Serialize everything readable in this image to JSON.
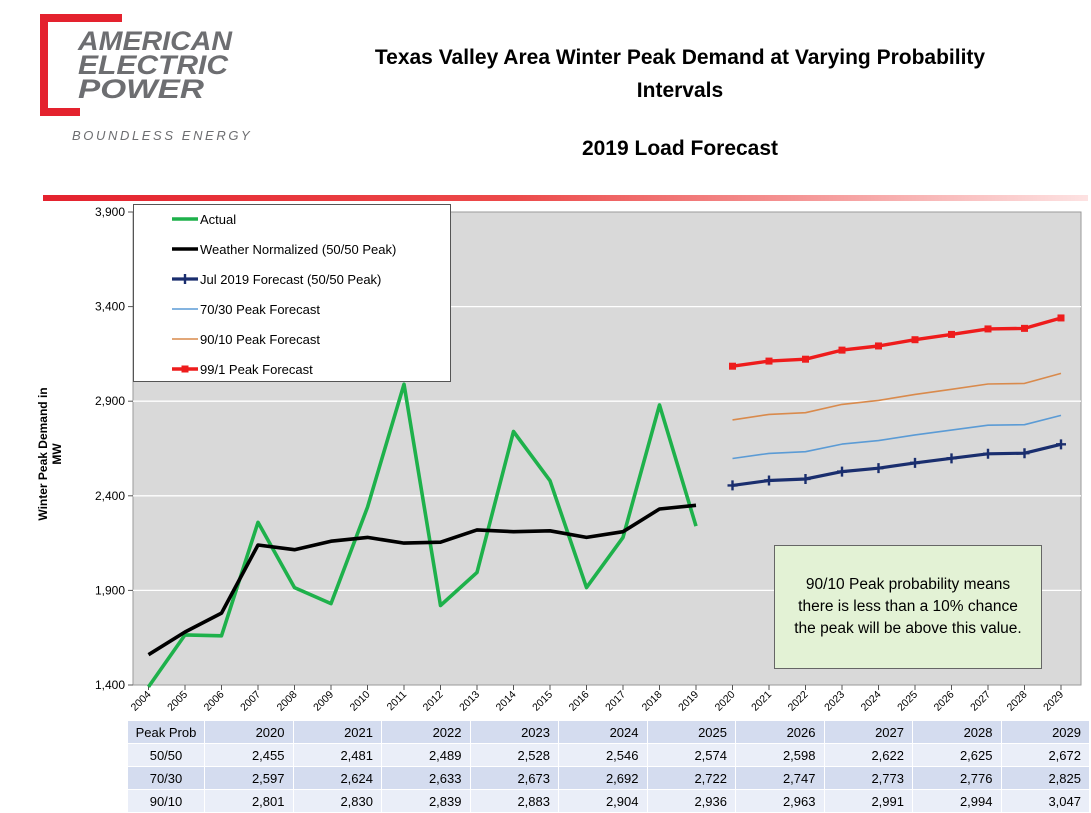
{
  "logo": {
    "line1": "AMERICAN",
    "line2": "ELECTRIC",
    "line3": "POWER",
    "tagline": "BOUNDLESS ENERGY",
    "brand_red": "#e4222e"
  },
  "title": {
    "line1": "Texas Valley Area Winter Peak Demand at Varying Probability",
    "line2": "Intervals",
    "subtitle": "2019 Load Forecast"
  },
  "note": "90/10 Peak probability means there is less than a 10% chance the peak will be above this value.",
  "chart_data": {
    "type": "line",
    "ylabel": "Winter Peak Demand in MW",
    "ylim": [
      1400,
      3900
    ],
    "yticks": [
      1400,
      1900,
      2400,
      2900,
      3400,
      3900
    ],
    "ytick_labels": [
      "1,400",
      "1,900",
      "2,400",
      "2,900",
      "3,400",
      "3,900"
    ],
    "x": [
      2004,
      2005,
      2006,
      2007,
      2008,
      2009,
      2010,
      2011,
      2012,
      2013,
      2014,
      2015,
      2016,
      2017,
      2018,
      2019,
      2020,
      2021,
      2022,
      2023,
      2024,
      2025,
      2026,
      2027,
      2028,
      2029
    ],
    "grid": "horizontal",
    "legend_position": "top-left",
    "series": [
      {
        "name": "Actual",
        "color": "#1eb14b",
        "style": "line-thick",
        "x": [
          2004,
          2005,
          2006,
          2007,
          2008,
          2009,
          2010,
          2011,
          2012,
          2013,
          2014,
          2015,
          2016,
          2017,
          2018,
          2019
        ],
        "values": [
          1390,
          1665,
          1660,
          2260,
          1915,
          1830,
          2340,
          2990,
          1820,
          1995,
          2740,
          2480,
          1915,
          2180,
          2880,
          2240
        ]
      },
      {
        "name": "Weather Normalized (50/50 Peak)",
        "color": "#000000",
        "style": "line-thick",
        "x": [
          2004,
          2005,
          2006,
          2007,
          2008,
          2009,
          2010,
          2011,
          2012,
          2013,
          2014,
          2015,
          2016,
          2017,
          2018,
          2019
        ],
        "values": [
          1560,
          1680,
          1780,
          2140,
          2115,
          2160,
          2180,
          2150,
          2155,
          2220,
          2210,
          2215,
          2180,
          2210,
          2330,
          2350
        ]
      },
      {
        "name": "Jul 2019 Forecast (50/50 Peak)",
        "color": "#1a2e6e",
        "style": "line-cross",
        "x": [
          2020,
          2021,
          2022,
          2023,
          2024,
          2025,
          2026,
          2027,
          2028,
          2029
        ],
        "values": [
          2455,
          2481,
          2489,
          2528,
          2546,
          2574,
          2598,
          2622,
          2625,
          2672
        ]
      },
      {
        "name": "70/30 Peak Forecast",
        "color": "#5b9bd5",
        "style": "line-thin",
        "x": [
          2020,
          2021,
          2022,
          2023,
          2024,
          2025,
          2026,
          2027,
          2028,
          2029
        ],
        "values": [
          2597,
          2624,
          2633,
          2673,
          2692,
          2722,
          2747,
          2773,
          2776,
          2825
        ]
      },
      {
        "name": "90/10 Peak Forecast",
        "color": "#d98a4c",
        "style": "line-thin",
        "x": [
          2020,
          2021,
          2022,
          2023,
          2024,
          2025,
          2026,
          2027,
          2028,
          2029
        ],
        "values": [
          2801,
          2830,
          2839,
          2883,
          2904,
          2936,
          2963,
          2991,
          2994,
          3047
        ]
      },
      {
        "name": "99/1 Peak Forecast",
        "color": "#ee1c1c",
        "style": "line-square",
        "x": [
          2020,
          2021,
          2022,
          2023,
          2024,
          2025,
          2026,
          2027,
          2028,
          2029
        ],
        "values": [
          3085,
          3112,
          3122,
          3170,
          3192,
          3225,
          3253,
          3282,
          3285,
          3340
        ]
      }
    ]
  },
  "table": {
    "header": [
      "Peak Prob",
      "2020",
      "2021",
      "2022",
      "2023",
      "2024",
      "2025",
      "2026",
      "2027",
      "2028",
      "2029"
    ],
    "rows": [
      [
        "50/50",
        "2,455",
        "2,481",
        "2,489",
        "2,528",
        "2,546",
        "2,574",
        "2,598",
        "2,622",
        "2,625",
        "2,672"
      ],
      [
        "70/30",
        "2,597",
        "2,624",
        "2,633",
        "2,673",
        "2,692",
        "2,722",
        "2,747",
        "2,773",
        "2,776",
        "2,825"
      ],
      [
        "90/10",
        "2,801",
        "2,830",
        "2,839",
        "2,883",
        "2,904",
        "2,936",
        "2,963",
        "2,991",
        "2,994",
        "3,047"
      ]
    ]
  }
}
